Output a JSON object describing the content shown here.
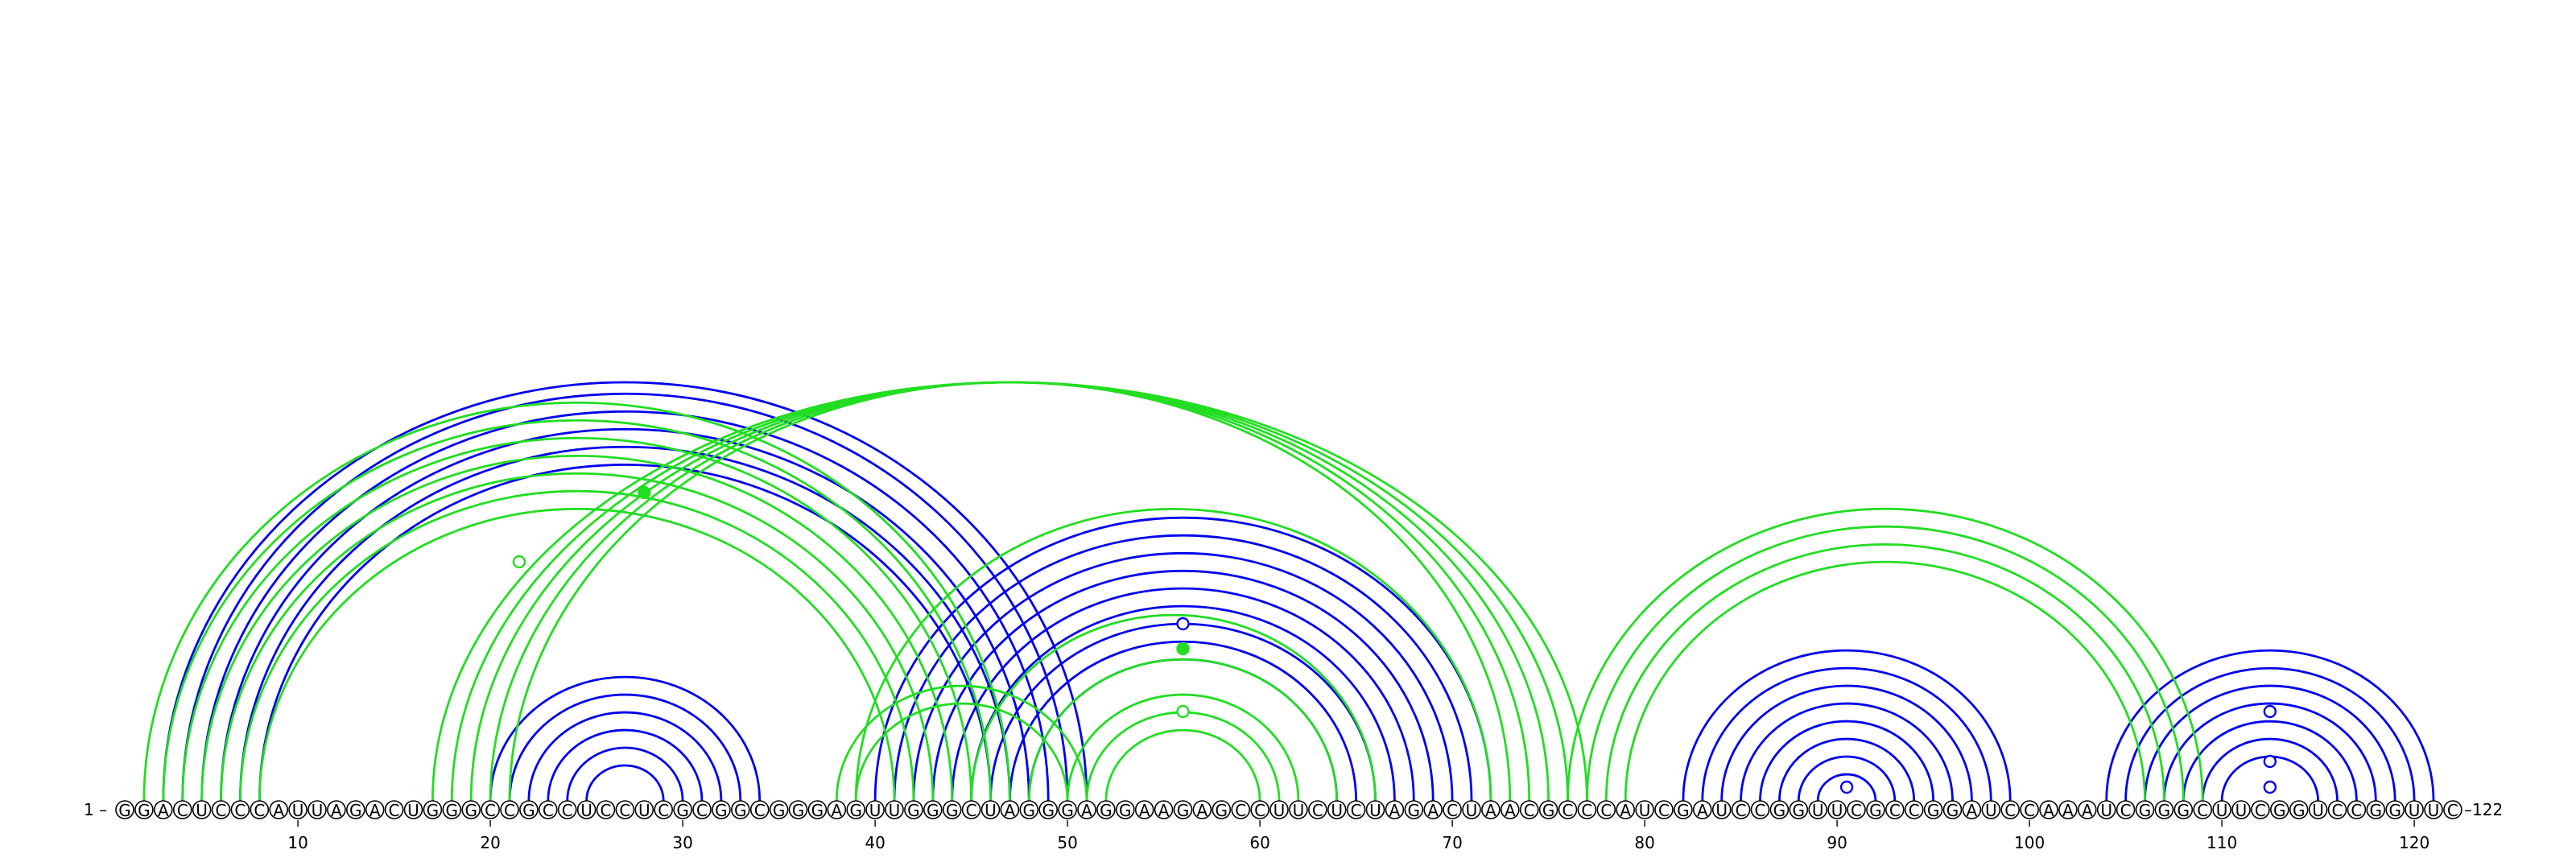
{
  "sequence": "GGACUCCCAUUAGACUGGGCCGCCUCCUCGCGGCGGGAGUUGGGCUAGGGAGGAAGAGCCUUCUCUAGACUAACGCCCAUCGAUCCGGUUCGCCGGAUCCAAAUCGGGCUUCGGUCCGGUUC",
  "start_label": "1 –",
  "end_label": "–122",
  "position_ticks": [
    "10",
    "20",
    "30",
    "40",
    "50",
    "60",
    "70",
    "80",
    "90",
    "100",
    "110",
    "120"
  ],
  "colors": {
    "reference": "#0000ee",
    "predicted": "#22dd22",
    "text": "#000000"
  },
  "arc_sets": [
    {
      "name": "",
      "color": "reference",
      "pairs": [
        [
          3,
          51
        ],
        [
          4,
          50
        ],
        [
          5,
          49
        ],
        [
          6,
          48
        ],
        [
          7,
          47
        ],
        [
          8,
          46
        ]
      ]
    },
    {
      "name": "",
      "color": "reference",
      "pairs": [
        [
          20,
          34
        ],
        [
          21,
          33
        ],
        [
          22,
          32
        ],
        [
          23,
          31
        ],
        [
          24,
          30
        ],
        [
          25,
          29
        ]
      ]
    },
    {
      "name": "",
      "color": "reference",
      "pairs": [
        [
          40,
          72
        ],
        [
          41,
          71
        ],
        [
          42,
          70
        ],
        [
          43,
          69
        ],
        [
          44,
          68
        ],
        [
          45,
          67
        ],
        [
          46,
          66
        ],
        [
          47,
          65
        ],
        [
          48,
          64
        ]
      ]
    },
    {
      "name": "",
      "color": "reference",
      "pairs": [
        [
          82,
          99
        ],
        [
          83,
          98
        ],
        [
          84,
          97
        ],
        [
          85,
          96
        ],
        [
          86,
          95
        ],
        [
          87,
          94
        ],
        [
          88,
          93
        ],
        [
          89,
          92
        ]
      ]
    },
    {
      "name": "",
      "color": "reference",
      "pairs": [
        [
          104,
          121
        ],
        [
          105,
          120
        ],
        [
          106,
          119
        ],
        [
          107,
          118
        ],
        [
          108,
          117
        ],
        [
          109,
          116
        ],
        [
          110,
          115
        ]
      ]
    },
    {
      "name": "",
      "color": "predicted",
      "pairs": [
        [
          2,
          47
        ],
        [
          3,
          46
        ],
        [
          4,
          45
        ],
        [
          5,
          44
        ],
        [
          6,
          43
        ],
        [
          7,
          42
        ],
        [
          8,
          41
        ]
      ]
    },
    {
      "name": "",
      "color": "predicted",
      "pairs": [
        [
          17,
          77
        ],
        [
          18,
          76
        ],
        [
          19,
          75
        ],
        [
          20,
          74
        ],
        [
          21,
          73
        ]
      ]
    },
    {
      "name": "",
      "color": "predicted",
      "pairs": [
        [
          38,
          51
        ],
        [
          39,
          50
        ]
      ]
    },
    {
      "name": "",
      "color": "predicted",
      "pairs": [
        [
          39,
          72
        ],
        [
          45,
          66
        ],
        [
          48,
          64
        ],
        [
          50,
          62
        ],
        [
          51,
          61
        ],
        [
          52,
          60
        ]
      ]
    },
    {
      "name": "",
      "color": "predicted",
      "pairs": [
        [
          76,
          109
        ],
        [
          77,
          108
        ],
        [
          78,
          107
        ],
        [
          79,
          106
        ]
      ]
    }
  ],
  "pair_markers": [
    {
      "position": 28.0,
      "height_rank": 1,
      "color": "predicted",
      "filled": true
    },
    {
      "position": 21.5,
      "height_rank": 2,
      "color": "predicted",
      "filled": false
    },
    {
      "position": 56.0,
      "height_rank": 3,
      "color": "reference",
      "filled": false
    },
    {
      "position": 56.0,
      "height_rank": 4,
      "color": "predicted",
      "filled": true
    },
    {
      "position": 56.0,
      "height_rank": 5,
      "color": "predicted",
      "filled": false
    },
    {
      "position": 90.5,
      "height_rank": 6,
      "color": "reference",
      "filled": false
    },
    {
      "position": 112.5,
      "height_rank": 5,
      "color": "reference",
      "filled": false
    },
    {
      "position": 112.5,
      "height_rank": 7,
      "color": "reference",
      "filled": false
    },
    {
      "position": 112.5,
      "height_rank": 6,
      "color": "reference",
      "filled": false
    }
  ]
}
